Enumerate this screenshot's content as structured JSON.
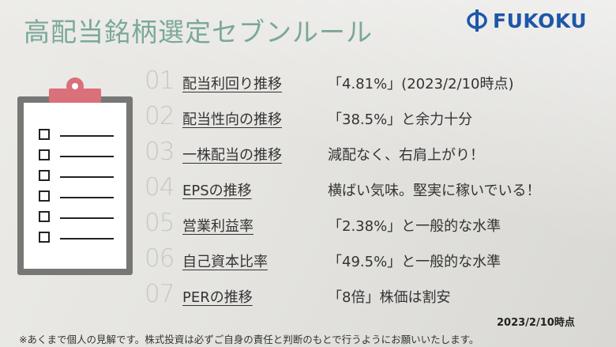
{
  "title": "高配当銘柄選定セブンルール",
  "logo": {
    "text": "FUKOKU",
    "mark_icon": "fukoku-logo-icon",
    "color": "#1d57a8"
  },
  "clipboard_icon": "clipboard-checklist-icon",
  "rules": [
    {
      "number": "01",
      "label": "配当利回り推移",
      "value": "「4.81%」(2023/2/10時点)"
    },
    {
      "number": "02",
      "label": "配当性向の推移",
      "value": "「38.5%」と余力十分"
    },
    {
      "number": "03",
      "label": "一株配当の推移",
      "value": "減配なく、右肩上がり！"
    },
    {
      "number": "04",
      "label": "EPSの推移",
      "value": "横ばい気味。堅実に稼いでいる！"
    },
    {
      "number": "05",
      "label": "営業利益率",
      "value": "「2.38%」と一般的な水準"
    },
    {
      "number": "06",
      "label": "自己資本比率",
      "value": "「49.5%」と一般的な水準"
    },
    {
      "number": "07",
      "label": "PERの推移",
      "value": "「8倍」株価は割安"
    }
  ],
  "date": "2023/2/10時点",
  "disclaimer": "※あくまで個人の見解です。株式投資は必ずご自身の責任と判断のもとで行うようにお願いいたします。",
  "colors": {
    "title": "#7aa89a",
    "number": "#c7c7c3",
    "clip": "#d9707a"
  }
}
